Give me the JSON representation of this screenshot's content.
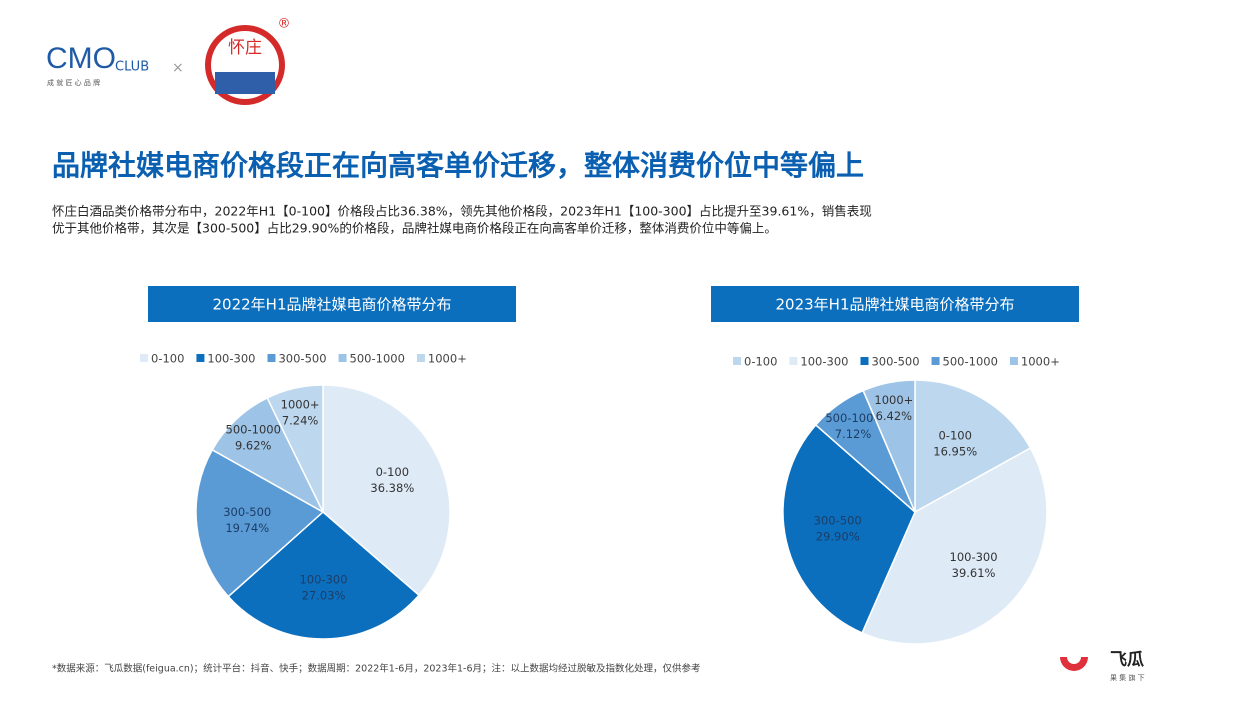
{
  "header": {
    "logo_text": "CMO",
    "logo_club": "CLUB",
    "logo_tagline": "成 就 匠 心 品 牌",
    "cross": "×",
    "brand": "怀庄",
    "registered": "®"
  },
  "title": "品牌社媒电商价格段正在向高客单价迁移，整体消费价位中等偏上",
  "description": [
    "怀庄白酒品类价格带分布中，2022年H1【0-100】价格段占比36.38%，领先其他价格段，2023年H1【100-300】占比提升至39.61%，销售表现",
    "优于其他价格带，其次是【300-500】占比29.90%的价格段，品牌社媒电商价格段正在向高客单价迁移，整体消费价位中等偏上。"
  ],
  "chart_data": [
    {
      "type": "pie",
      "title": "2022年H1品牌社媒电商价格带分布",
      "categories": [
        "0-100",
        "100-300",
        "300-500",
        "500-1000",
        "1000+"
      ],
      "values": [
        36.38,
        27.03,
        19.74,
        9.62,
        7.24
      ],
      "value_labels": [
        "36.38%",
        "27.03%",
        "19.74%",
        "9.62%",
        "7.24%"
      ],
      "colors": [
        "#deeaf6",
        "#0b6fbe",
        "#5b9bd5",
        "#9dc3e6",
        "#bdd7ee"
      ],
      "legend": "top"
    },
    {
      "type": "pie",
      "title": "2023年H1品牌社媒电商价格带分布",
      "categories": [
        "0-100",
        "100-300",
        "300-500",
        "500-1000",
        "1000+"
      ],
      "values": [
        16.95,
        39.61,
        29.9,
        7.12,
        6.42
      ],
      "value_labels": [
        "16.95%",
        "39.61%",
        "29.90%",
        "7.12%",
        "6.42%"
      ],
      "colors": [
        "#bdd7ee",
        "#deeaf6",
        "#0b6fbe",
        "#5b9bd5",
        "#9dc3e6"
      ],
      "legend": "top"
    }
  ],
  "footnote": "*数据来源：飞瓜数据(feigua.cn)；统计平台：抖音、快手；数据周期：2022年1-6月，2023年1-6月；注：以上数据均经过脱敏及指数化处理，仅供参考",
  "footer_logo": {
    "name": "飞瓜",
    "tagline": "果 集 旗 下"
  }
}
